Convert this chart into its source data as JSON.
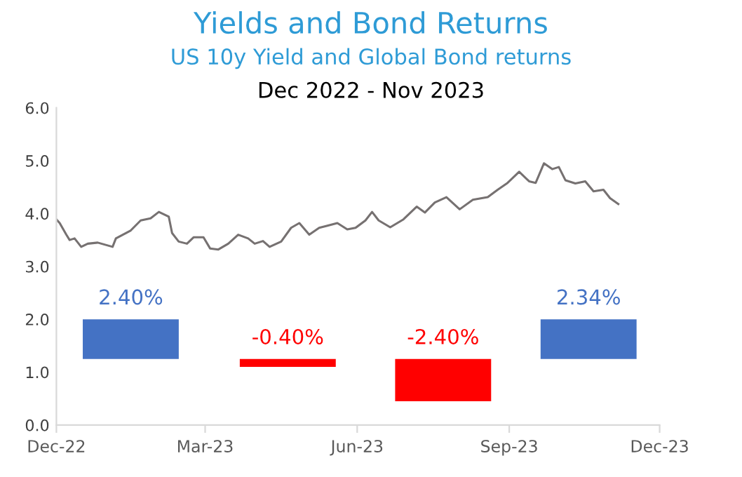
{
  "chart_data": {
    "type": "line",
    "title": "Yields and Bond Returns",
    "subtitle": "US 10y Yield and Global Bond returns",
    "annotations": [
      "Dec 2022 - Nov 2023",
      "2.40%",
      "-0.40%",
      "-2.40%",
      "2.34%"
    ],
    "xlim": [
      "2022-12-01",
      "2023-12-01"
    ],
    "xticks": [
      {
        "value": "2022-12-01",
        "label": "Dec-22"
      },
      {
        "value": "2023-03-01",
        "label": "Mar-23"
      },
      {
        "value": "2023-06-01",
        "label": "Jun-23"
      },
      {
        "value": "2023-09-01",
        "label": "Sep-23"
      },
      {
        "value": "2023-12-01",
        "label": "Dec-23"
      }
    ],
    "ylim": [
      0,
      6
    ],
    "yticks": [
      {
        "value": 0,
        "label": "0.0"
      },
      {
        "value": 1,
        "label": "1.0"
      },
      {
        "value": 2,
        "label": "2.0"
      },
      {
        "value": 3,
        "label": "3.0"
      },
      {
        "value": 4,
        "label": "4.0"
      },
      {
        "value": 5,
        "label": "5.0"
      },
      {
        "value": 6,
        "label": "6.0"
      }
    ],
    "grid": false,
    "legend": false,
    "series": [
      {
        "color": "#767171",
        "x": [
          "2022-12-01",
          "2022-12-03",
          "2022-12-07",
          "2022-12-09",
          "2022-12-12",
          "2022-12-16",
          "2022-12-20",
          "2022-12-26",
          "2023-01-04",
          "2023-01-06",
          "2023-01-15",
          "2023-01-21",
          "2023-01-27",
          "2023-02-01",
          "2023-02-07",
          "2023-02-09",
          "2023-02-13",
          "2023-02-18",
          "2023-02-22",
          "2023-02-28",
          "2023-03-04",
          "2023-03-09",
          "2023-03-15",
          "2023-03-21",
          "2023-03-27",
          "2023-03-31",
          "2023-04-05",
          "2023-04-09",
          "2023-04-16",
          "2023-04-22",
          "2023-04-27",
          "2023-05-03",
          "2023-05-09",
          "2023-05-14",
          "2023-05-20",
          "2023-05-26",
          "2023-05-31",
          "2023-06-06",
          "2023-06-10",
          "2023-06-14",
          "2023-06-21",
          "2023-06-29",
          "2023-07-07",
          "2023-07-12",
          "2023-07-18",
          "2023-07-25",
          "2023-08-02",
          "2023-08-10",
          "2023-08-19",
          "2023-08-25",
          "2023-08-31",
          "2023-09-07",
          "2023-09-13",
          "2023-09-17",
          "2023-09-22",
          "2023-09-27",
          "2023-10-01",
          "2023-10-05",
          "2023-10-11",
          "2023-10-17",
          "2023-10-22",
          "2023-10-28",
          "2023-11-01",
          "2023-11-06"
        ],
        "values": [
          3.89,
          3.82,
          3.6,
          3.5,
          3.53,
          3.37,
          3.43,
          3.45,
          3.37,
          3.53,
          3.68,
          3.87,
          3.91,
          4.03,
          3.94,
          3.63,
          3.47,
          3.43,
          3.55,
          3.55,
          3.34,
          3.32,
          3.43,
          3.6,
          3.53,
          3.43,
          3.48,
          3.37,
          3.47,
          3.73,
          3.82,
          3.6,
          3.73,
          3.77,
          3.82,
          3.7,
          3.73,
          3.87,
          4.03,
          3.87,
          3.74,
          3.89,
          4.13,
          4.02,
          4.21,
          4.31,
          4.08,
          4.26,
          4.31,
          4.45,
          4.58,
          4.79,
          4.61,
          4.58,
          4.95,
          4.84,
          4.88,
          4.63,
          4.57,
          4.61,
          4.42,
          4.45,
          4.29,
          4.18
        ]
      },
      {
        "type": "bar",
        "x": [
          "2023-01-15",
          "2023-04-20",
          "2023-07-23",
          "2023-10-19"
        ],
        "base": [
          1.25,
          1.25,
          1.25,
          1.25
        ],
        "values": [
          0.75,
          -0.15,
          -0.8,
          0.75
        ],
        "colors": [
          "#4472c4",
          "#ff0000",
          "#ff0000",
          "#4472c4"
        ]
      }
    ]
  }
}
